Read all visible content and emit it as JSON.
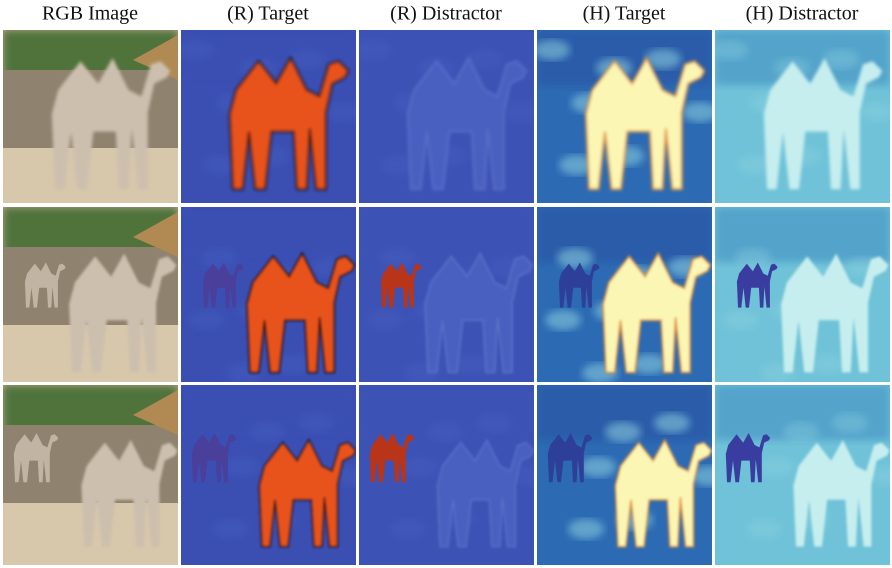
{
  "header": {
    "columns": [
      "RGB Image",
      "(R) Target",
      "(R) Distractor",
      "(H) Target",
      "(H) Distractor"
    ]
  }
}
